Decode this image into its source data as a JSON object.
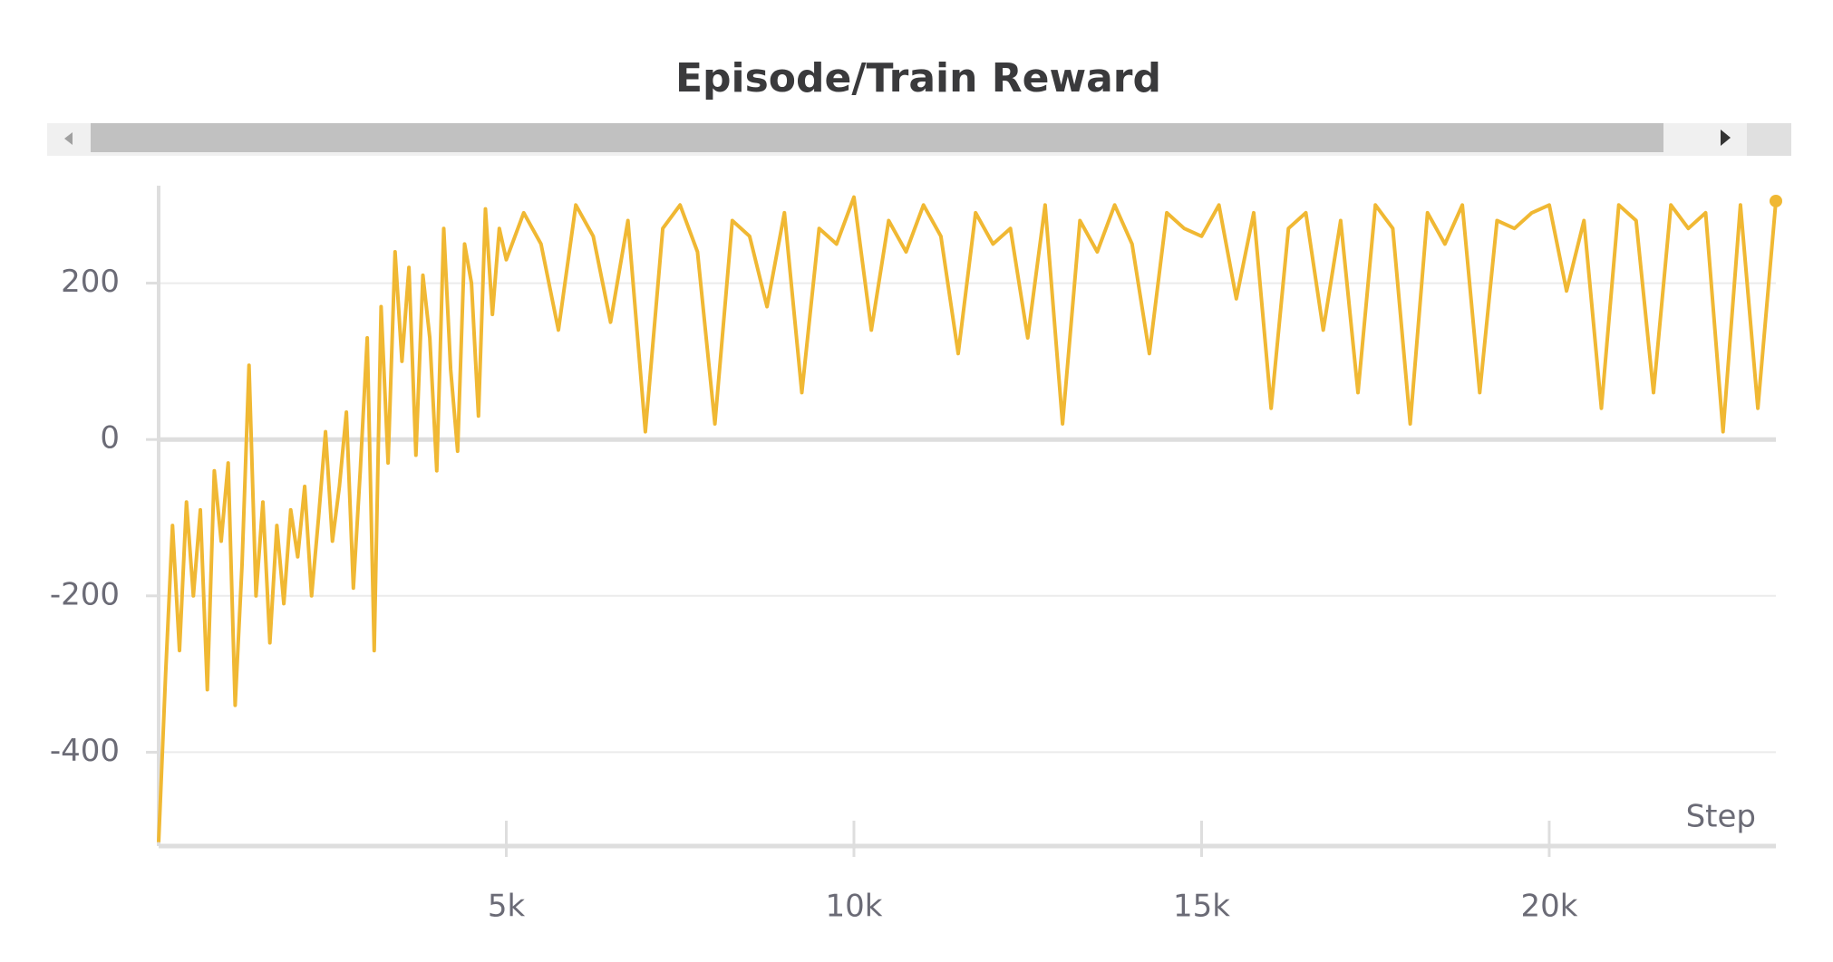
{
  "chart_data": {
    "type": "line",
    "title": "Episode/Train Reward",
    "x_label": "Step",
    "x": [
      0,
      100,
      200,
      300,
      400,
      500,
      600,
      700,
      800,
      900,
      1000,
      1100,
      1200,
      1300,
      1400,
      1500,
      1600,
      1700,
      1800,
      1900,
      2000,
      2100,
      2200,
      2300,
      2400,
      2500,
      2600,
      2700,
      2800,
      2900,
      3000,
      3100,
      3200,
      3300,
      3400,
      3500,
      3600,
      3700,
      3800,
      3900,
      4000,
      4100,
      4200,
      4300,
      4400,
      4500,
      4600,
      4700,
      4800,
      4900,
      5000,
      5250,
      5500,
      5750,
      6000,
      6250,
      6500,
      6750,
      7000,
      7250,
      7500,
      7750,
      8000,
      8250,
      8500,
      8750,
      9000,
      9250,
      9500,
      9750,
      10000,
      10250,
      10500,
      10750,
      11000,
      11250,
      11500,
      11750,
      12000,
      12250,
      12500,
      12750,
      13000,
      13250,
      13500,
      13750,
      14000,
      14250,
      14500,
      14750,
      15000,
      15250,
      15500,
      15750,
      16000,
      16250,
      16500,
      16750,
      17000,
      17250,
      17500,
      17750,
      18000,
      18250,
      18500,
      18750,
      19000,
      19250,
      19500,
      19750,
      20000,
      20250,
      20500,
      20750,
      21000,
      21250,
      21500,
      21750,
      22000,
      22250,
      22500,
      22750,
      23000,
      23260
    ],
    "series": [
      {
        "name": "Episode/Train Reward",
        "color": "#f0b833",
        "values": [
          -515,
          -300,
          -110,
          -270,
          -80,
          -200,
          -90,
          -320,
          -40,
          -130,
          -30,
          -340,
          -160,
          95,
          -200,
          -80,
          -260,
          -110,
          -210,
          -90,
          -150,
          -60,
          -200,
          -100,
          10,
          -130,
          -60,
          35,
          -190,
          -40,
          130,
          -270,
          170,
          -30,
          240,
          100,
          220,
          -20,
          210,
          130,
          -40,
          270,
          90,
          -15,
          250,
          200,
          30,
          295,
          160,
          270,
          230,
          290,
          250,
          140,
          300,
          260,
          150,
          280,
          10,
          270,
          300,
          240,
          20,
          280,
          260,
          170,
          290,
          60,
          270,
          250,
          310,
          140,
          280,
          240,
          300,
          260,
          110,
          290,
          250,
          270,
          130,
          300,
          20,
          280,
          240,
          300,
          250,
          110,
          290,
          270,
          260,
          300,
          180,
          290,
          40,
          270,
          290,
          140,
          280,
          60,
          300,
          270,
          20,
          290,
          250,
          300,
          60,
          280,
          270,
          290,
          300,
          190,
          280,
          40,
          300,
          280,
          60,
          300,
          270,
          290,
          10,
          300,
          40,
          305
        ]
      }
    ],
    "xlim": [
      0,
      23260
    ],
    "ylim": [
      -520,
      320
    ],
    "xticks": [
      {
        "value": 5000,
        "label": "5k"
      },
      {
        "value": 10000,
        "label": "10k"
      },
      {
        "value": 15000,
        "label": "15k"
      },
      {
        "value": 20000,
        "label": "20k"
      }
    ],
    "yticks": [
      -400,
      -200,
      0,
      200
    ],
    "grid": true
  }
}
